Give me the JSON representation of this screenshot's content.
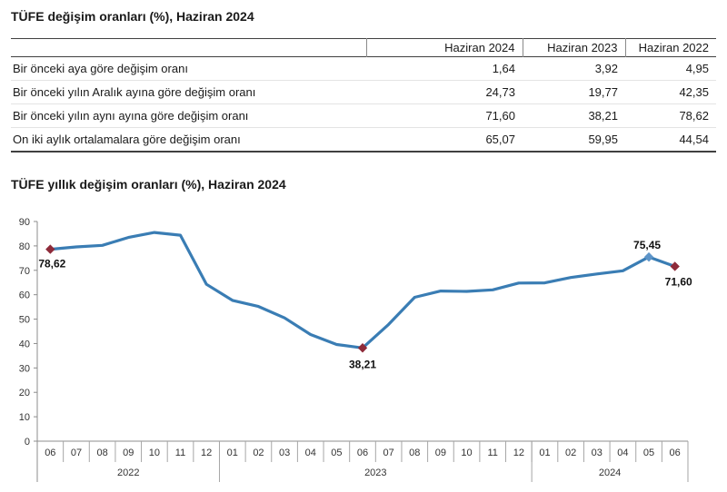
{
  "page": {
    "table_title": "TÜFE değişim oranları (%), Haziran 2024",
    "chart_title": "TÜFE yıllık değişim oranları (%), Haziran 2024"
  },
  "table": {
    "columns": [
      "Haziran 2024",
      "Haziran 2023",
      "Haziran 2022"
    ],
    "rows": [
      {
        "label": "Bir önceki aya göre değişim oranı",
        "values": [
          "1,64",
          "3,92",
          "4,95"
        ]
      },
      {
        "label": "Bir önceki yılın Aralık ayına göre değişim oranı",
        "values": [
          "24,73",
          "19,77",
          "42,35"
        ]
      },
      {
        "label": "Bir önceki yılın aynı ayına göre değişim oranı",
        "values": [
          "71,60",
          "38,21",
          "78,62"
        ]
      },
      {
        "label": "On iki aylık ortalamalara göre değişim oranı",
        "values": [
          "65,07",
          "59,95",
          "44,54"
        ]
      }
    ]
  },
  "chart_data": {
    "type": "line",
    "title": "TÜFE yıllık değişim oranları (%), Haziran 2024",
    "ylabel": "",
    "xlabel": "",
    "ylim": [
      0,
      90
    ],
    "ytick_step": 10,
    "grid": false,
    "legend": "none",
    "months": [
      "06",
      "07",
      "08",
      "09",
      "10",
      "11",
      "12",
      "01",
      "02",
      "03",
      "04",
      "05",
      "06",
      "07",
      "08",
      "09",
      "10",
      "11",
      "12",
      "01",
      "02",
      "03",
      "04",
      "05",
      "06"
    ],
    "year_groups": [
      {
        "label": "2022",
        "count": 7
      },
      {
        "label": "2023",
        "count": 12
      },
      {
        "label": "2024",
        "count": 6
      }
    ],
    "values": [
      78.62,
      79.6,
      80.21,
      83.45,
      85.51,
      84.39,
      64.27,
      57.68,
      55.18,
      50.51,
      43.68,
      39.59,
      38.21,
      47.83,
      58.94,
      61.53,
      61.36,
      61.98,
      64.77,
      64.86,
      67.07,
      68.5,
      69.8,
      75.45,
      71.6
    ],
    "annotations": [
      {
        "index": 0,
        "label": "78,62",
        "position": "below-left",
        "marker": "red-diamond"
      },
      {
        "index": 12,
        "label": "38,21",
        "position": "below",
        "marker": "red-diamond"
      },
      {
        "index": 23,
        "label": "75,45",
        "position": "above",
        "marker": "blue-diamond"
      },
      {
        "index": 24,
        "label": "71,60",
        "position": "below-right",
        "marker": "red-diamond"
      }
    ],
    "colors": {
      "line": "#3a7db4",
      "marker_red": "#8e2b3a",
      "marker_blue": "#5d94c8",
      "axis": "#8c8c8c",
      "cell_line": "#a6a6a6",
      "tick_text": "#333333",
      "label_text": "#111111"
    }
  }
}
